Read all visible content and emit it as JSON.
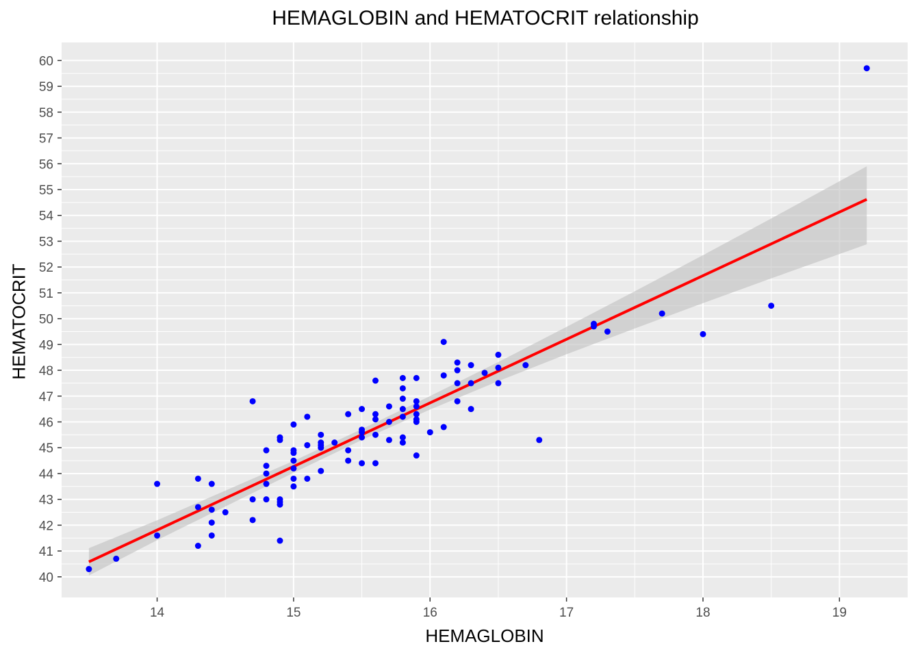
{
  "chart_data": {
    "type": "scatter",
    "title": "HEMAGLOBIN and HEMATOCRIT relationship",
    "xlabel": "HEMAGLOBIN",
    "ylabel": "HEMATOCRIT",
    "xlim": [
      13.3,
      19.5
    ],
    "ylim": [
      39.2,
      60.7
    ],
    "x_ticks": [
      14,
      15,
      16,
      17,
      18,
      19
    ],
    "y_ticks": [
      40,
      41,
      42,
      43,
      44,
      45,
      46,
      47,
      48,
      49,
      50,
      51,
      52,
      53,
      54,
      55,
      56,
      57,
      58,
      59,
      60
    ],
    "grid": true,
    "background": "#ebebeb",
    "point_color": "#0000ff",
    "line_color": "#ff0000",
    "band_color": "#bfbfbf",
    "points": [
      {
        "x": 13.5,
        "y": 40.3
      },
      {
        "x": 13.7,
        "y": 40.7
      },
      {
        "x": 14.0,
        "y": 43.6
      },
      {
        "x": 14.0,
        "y": 41.6
      },
      {
        "x": 14.3,
        "y": 43.8
      },
      {
        "x": 14.3,
        "y": 42.7
      },
      {
        "x": 14.3,
        "y": 41.2
      },
      {
        "x": 14.4,
        "y": 43.6
      },
      {
        "x": 14.4,
        "y": 42.6
      },
      {
        "x": 14.4,
        "y": 42.1
      },
      {
        "x": 14.4,
        "y": 41.6
      },
      {
        "x": 14.5,
        "y": 42.5
      },
      {
        "x": 14.7,
        "y": 46.8
      },
      {
        "x": 14.7,
        "y": 43.0
      },
      {
        "x": 14.7,
        "y": 42.2
      },
      {
        "x": 14.8,
        "y": 44.9
      },
      {
        "x": 14.8,
        "y": 44.3
      },
      {
        "x": 14.8,
        "y": 44.0
      },
      {
        "x": 14.8,
        "y": 43.6
      },
      {
        "x": 14.8,
        "y": 43.0
      },
      {
        "x": 14.9,
        "y": 45.4
      },
      {
        "x": 14.9,
        "y": 45.3
      },
      {
        "x": 14.9,
        "y": 43.0
      },
      {
        "x": 14.9,
        "y": 42.9
      },
      {
        "x": 14.9,
        "y": 42.8
      },
      {
        "x": 14.9,
        "y": 41.4
      },
      {
        "x": 15.0,
        "y": 45.9
      },
      {
        "x": 15.0,
        "y": 44.9
      },
      {
        "x": 15.0,
        "y": 44.8
      },
      {
        "x": 15.0,
        "y": 44.5
      },
      {
        "x": 15.0,
        "y": 44.2
      },
      {
        "x": 15.0,
        "y": 43.8
      },
      {
        "x": 15.0,
        "y": 43.5
      },
      {
        "x": 15.1,
        "y": 46.2
      },
      {
        "x": 15.1,
        "y": 45.1
      },
      {
        "x": 15.1,
        "y": 43.8
      },
      {
        "x": 15.2,
        "y": 45.5
      },
      {
        "x": 15.2,
        "y": 45.2
      },
      {
        "x": 15.2,
        "y": 45.1
      },
      {
        "x": 15.2,
        "y": 45.0
      },
      {
        "x": 15.2,
        "y": 44.1
      },
      {
        "x": 15.3,
        "y": 45.2
      },
      {
        "x": 15.4,
        "y": 46.3
      },
      {
        "x": 15.4,
        "y": 44.9
      },
      {
        "x": 15.4,
        "y": 44.5
      },
      {
        "x": 15.5,
        "y": 46.5
      },
      {
        "x": 15.5,
        "y": 45.7
      },
      {
        "x": 15.5,
        "y": 45.6
      },
      {
        "x": 15.5,
        "y": 45.4
      },
      {
        "x": 15.5,
        "y": 44.4
      },
      {
        "x": 15.6,
        "y": 47.6
      },
      {
        "x": 15.6,
        "y": 46.3
      },
      {
        "x": 15.6,
        "y": 46.1
      },
      {
        "x": 15.6,
        "y": 45.5
      },
      {
        "x": 15.6,
        "y": 44.4
      },
      {
        "x": 15.7,
        "y": 46.6
      },
      {
        "x": 15.7,
        "y": 46.0
      },
      {
        "x": 15.7,
        "y": 45.3
      },
      {
        "x": 15.8,
        "y": 47.7
      },
      {
        "x": 15.8,
        "y": 47.3
      },
      {
        "x": 15.8,
        "y": 46.9
      },
      {
        "x": 15.8,
        "y": 46.5
      },
      {
        "x": 15.8,
        "y": 46.2
      },
      {
        "x": 15.8,
        "y": 45.4
      },
      {
        "x": 15.8,
        "y": 45.2
      },
      {
        "x": 15.9,
        "y": 47.7
      },
      {
        "x": 15.9,
        "y": 46.8
      },
      {
        "x": 15.9,
        "y": 46.6
      },
      {
        "x": 15.9,
        "y": 46.3
      },
      {
        "x": 15.9,
        "y": 46.1
      },
      {
        "x": 15.9,
        "y": 46.0
      },
      {
        "x": 15.9,
        "y": 44.7
      },
      {
        "x": 16.0,
        "y": 45.6
      },
      {
        "x": 16.1,
        "y": 49.1
      },
      {
        "x": 16.1,
        "y": 47.8
      },
      {
        "x": 16.1,
        "y": 45.8
      },
      {
        "x": 16.2,
        "y": 48.3
      },
      {
        "x": 16.2,
        "y": 48.0
      },
      {
        "x": 16.2,
        "y": 47.5
      },
      {
        "x": 16.2,
        "y": 46.8
      },
      {
        "x": 16.3,
        "y": 48.2
      },
      {
        "x": 16.3,
        "y": 47.5
      },
      {
        "x": 16.3,
        "y": 46.5
      },
      {
        "x": 16.4,
        "y": 47.9
      },
      {
        "x": 16.5,
        "y": 48.6
      },
      {
        "x": 16.5,
        "y": 48.1
      },
      {
        "x": 16.5,
        "y": 47.5
      },
      {
        "x": 16.7,
        "y": 48.2
      },
      {
        "x": 16.8,
        "y": 45.3
      },
      {
        "x": 17.2,
        "y": 49.8
      },
      {
        "x": 17.2,
        "y": 49.7
      },
      {
        "x": 17.3,
        "y": 49.5
      },
      {
        "x": 17.7,
        "y": 50.2
      },
      {
        "x": 18.0,
        "y": 49.4
      },
      {
        "x": 18.5,
        "y": 50.5
      },
      {
        "x": 19.2,
        "y": 59.7
      }
    ],
    "fit_line": {
      "x": [
        13.5,
        19.2
      ],
      "y": [
        40.58,
        54.62
      ]
    },
    "confidence_band": {
      "x": [
        13.5,
        14.0,
        15.0,
        15.5,
        16.0,
        16.5,
        17.0,
        17.5,
        18.0,
        18.5,
        19.2
      ],
      "lower": [
        40.05,
        41.42,
        44.03,
        45.3,
        46.48,
        47.58,
        48.62,
        49.62,
        50.6,
        51.56,
        52.88
      ],
      "upper": [
        41.11,
        42.19,
        44.49,
        45.72,
        47.0,
        48.32,
        49.68,
        51.06,
        52.46,
        53.88,
        55.9
      ]
    }
  }
}
